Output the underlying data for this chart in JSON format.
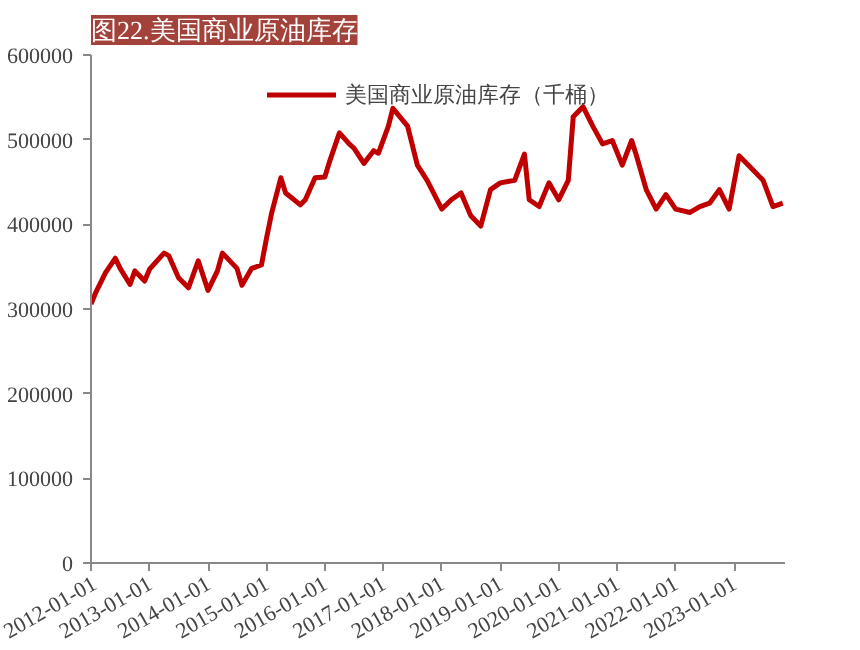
{
  "chart_data": {
    "type": "line",
    "title": "图22.美国商业原油库存",
    "legend": "top",
    "grid": false,
    "marker": "none",
    "line_style": "solid",
    "xlim": [
      "2012-01-01",
      "2023-11-15"
    ],
    "xticks": [
      "2012-01-01",
      "2013-01-01",
      "2014-01-01",
      "2015-01-01",
      "2016-01-01",
      "2017-01-01",
      "2018-01-01",
      "2019-01-01",
      "2020-01-01",
      "2021-01-01",
      "2022-01-01",
      "2023-01-01"
    ],
    "ylim": [
      0,
      600000
    ],
    "yticks": [
      0,
      100000,
      200000,
      300000,
      400000,
      500000,
      600000
    ],
    "x": [
      "2012-01",
      "2012-02",
      "2012-04",
      "2012-06",
      "2012-07",
      "2012-09",
      "2012-10",
      "2012-12",
      "2013-01",
      "2013-04",
      "2013-05",
      "2013-07",
      "2013-09",
      "2013-11",
      "2014-01",
      "2014-03",
      "2014-04",
      "2014-07",
      "2014-08",
      "2014-10",
      "2014-12",
      "2015-01",
      "2015-02",
      "2015-04",
      "2015-05",
      "2015-08",
      "2015-09",
      "2015-11",
      "2016-01",
      "2016-02",
      "2016-04",
      "2016-06",
      "2016-07",
      "2016-09",
      "2016-11",
      "2016-12",
      "2017-02",
      "2017-03",
      "2017-06",
      "2017-08",
      "2017-10",
      "2018-01",
      "2018-03",
      "2018-05",
      "2018-07",
      "2018-09",
      "2018-11",
      "2019-01",
      "2019-04",
      "2019-06",
      "2019-07",
      "2019-09",
      "2019-11",
      "2020-01",
      "2020-03",
      "2020-04",
      "2020-06",
      "2020-08",
      "2020-10",
      "2020-12",
      "2021-02",
      "2021-04",
      "2021-05",
      "2021-07",
      "2021-09",
      "2021-11",
      "2022-01",
      "2022-04",
      "2022-06",
      "2022-08",
      "2022-10",
      "2022-12",
      "2023-02",
      "2023-05",
      "2023-07",
      "2023-09",
      "2023-11"
    ],
    "series": [
      {
        "name": "美国商业原油库存（千桶）",
        "color": "#c00000",
        "values": [
          306000,
          320000,
          343000,
          360000,
          348000,
          329000,
          345000,
          333000,
          347000,
          366000,
          363000,
          337000,
          325000,
          357000,
          322000,
          345000,
          366000,
          348000,
          328000,
          348000,
          352000,
          383000,
          412000,
          455000,
          437000,
          423000,
          429000,
          455000,
          456000,
          475000,
          508000,
          495000,
          490000,
          472000,
          487000,
          484000,
          516000,
          537000,
          516000,
          470000,
          452000,
          418000,
          429000,
          437000,
          410000,
          398000,
          441000,
          449000,
          452000,
          483000,
          429000,
          421000,
          449000,
          429000,
          452000,
          527000,
          539000,
          516000,
          495000,
          499000,
          470000,
          499000,
          481000,
          441000,
          418000,
          435000,
          418000,
          414000,
          421000,
          425000,
          441000,
          418000,
          481000,
          464000,
          452000,
          421000,
          425000
        ]
      }
    ]
  }
}
